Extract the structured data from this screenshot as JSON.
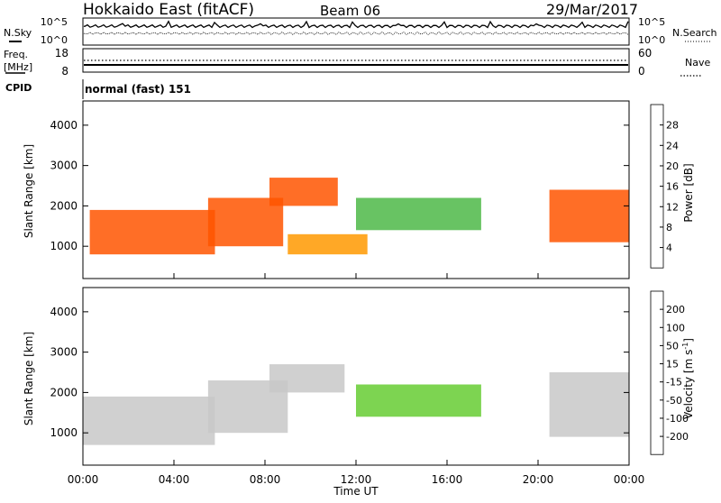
{
  "header": {
    "title": "Hokkaido East (fitACF)",
    "beam": "Beam 06",
    "date": "29/Mar/2017"
  },
  "noise_panel": {
    "left_label": "N.Sky",
    "right_label": "N.Search",
    "left_ticks": [
      "10^5",
      "10^0"
    ],
    "right_ticks": [
      "10^5",
      "10^0"
    ]
  },
  "freq_panel": {
    "left_label_top": "Freq.",
    "left_label_bottom": "[MHz]",
    "right_label": "Nave",
    "left_ticks": [
      "18",
      "8"
    ],
    "right_ticks": [
      "60",
      "0"
    ]
  },
  "cpid": {
    "label": "CPID",
    "value": "normal (fast) 151"
  },
  "x_axis": {
    "title": "Time UT",
    "ticks": [
      "00:00",
      "04:00",
      "08:00",
      "12:00",
      "16:00",
      "20:00",
      "00:00"
    ]
  },
  "colors": {
    "power_scale": [
      "#0000ff",
      "#1a5fa8",
      "#2e8b57",
      "#4db848",
      "#f0c419",
      "#ff9900",
      "#ff5500",
      "#ee1100"
    ],
    "velocity_scale": [
      "#ee0000",
      "#ff4000",
      "#ff8c00",
      "#f0b030",
      "#c8c8c8",
      "#66cc33",
      "#3fa040",
      "#1a6e5a",
      "#1f3fa0"
    ]
  },
  "chart_data": [
    {
      "type": "heatmap",
      "name": "power-panel",
      "ylabel": "Slant Range [km]",
      "y_ticks": [
        "1000",
        "2000",
        "3000",
        "4000"
      ],
      "ylim": [
        200,
        4600
      ],
      "xlim_hours": [
        0,
        24
      ],
      "colorbar": {
        "label": "Power [dB]",
        "ticks": [
          "4",
          "8",
          "12",
          "16",
          "20",
          "24",
          "28"
        ]
      },
      "dominant_regions": [
        {
          "t": [
            0.3,
            5.8
          ],
          "range_km": [
            800,
            1900
          ],
          "power_db": 26
        },
        {
          "t": [
            5.5,
            8.8
          ],
          "range_km": [
            1000,
            2200
          ],
          "power_db": 24
        },
        {
          "t": [
            8.2,
            11.2
          ],
          "range_km": [
            2000,
            2700
          ],
          "power_db": 24
        },
        {
          "t": [
            9.0,
            12.5
          ],
          "range_km": [
            800,
            1300
          ],
          "power_db": 20
        },
        {
          "t": [
            12.0,
            17.5
          ],
          "range_km": [
            1400,
            2200
          ],
          "power_db": 12
        },
        {
          "t": [
            20.5,
            24.0
          ],
          "range_km": [
            1100,
            2400
          ],
          "power_db": 24
        }
      ]
    },
    {
      "type": "heatmap",
      "name": "velocity-panel",
      "ylabel": "Slant Range [km]",
      "y_ticks": [
        "1000",
        "2000",
        "3000",
        "4000"
      ],
      "ylim": [
        200,
        4600
      ],
      "xlim_hours": [
        0,
        24
      ],
      "colorbar": {
        "label": "Velocity [m s^-1]",
        "ticks": [
          "200",
          "100",
          "50",
          "15",
          "-15",
          "-50",
          "-100",
          "-200"
        ]
      },
      "dominant_regions": [
        {
          "t": [
            0.0,
            5.8
          ],
          "range_km": [
            700,
            1900
          ],
          "velocity": 0
        },
        {
          "t": [
            5.5,
            9.0
          ],
          "range_km": [
            1000,
            2300
          ],
          "velocity": 0
        },
        {
          "t": [
            8.2,
            11.5
          ],
          "range_km": [
            2000,
            2700
          ],
          "velocity": 0
        },
        {
          "t": [
            12.0,
            17.5
          ],
          "range_km": [
            1400,
            2200
          ],
          "velocity": 50
        },
        {
          "t": [
            20.5,
            24.0
          ],
          "range_km": [
            900,
            2500
          ],
          "velocity": 0
        }
      ]
    }
  ]
}
